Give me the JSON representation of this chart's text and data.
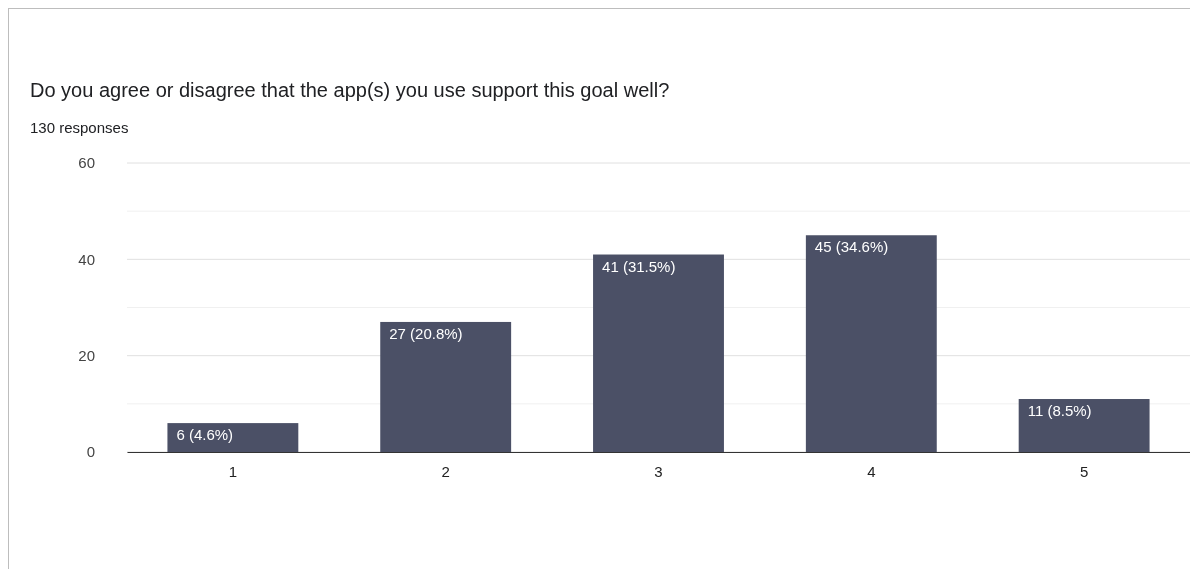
{
  "chart_data": {
    "type": "bar",
    "title": "Do you agree or disagree that the app(s) you use support this goal well?",
    "subtitle": "130 responses",
    "categories": [
      "1",
      "2",
      "3",
      "4",
      "5"
    ],
    "values": [
      6,
      27,
      41,
      45,
      11
    ],
    "value_labels": [
      "6 (4.6%)",
      "27 (20.8%)",
      "41 (31.5%)",
      "45 (34.6%)",
      "11 (8.5%)"
    ],
    "color": "#4b5066",
    "ylim": [
      0,
      60
    ],
    "yticks": [
      0,
      {
        "value": 10,
        "label": null
      },
      20,
      {
        "value": 30,
        "label": null
      },
      40,
      {
        "value": 50,
        "label": null
      },
      60
    ],
    "grid": "y"
  }
}
